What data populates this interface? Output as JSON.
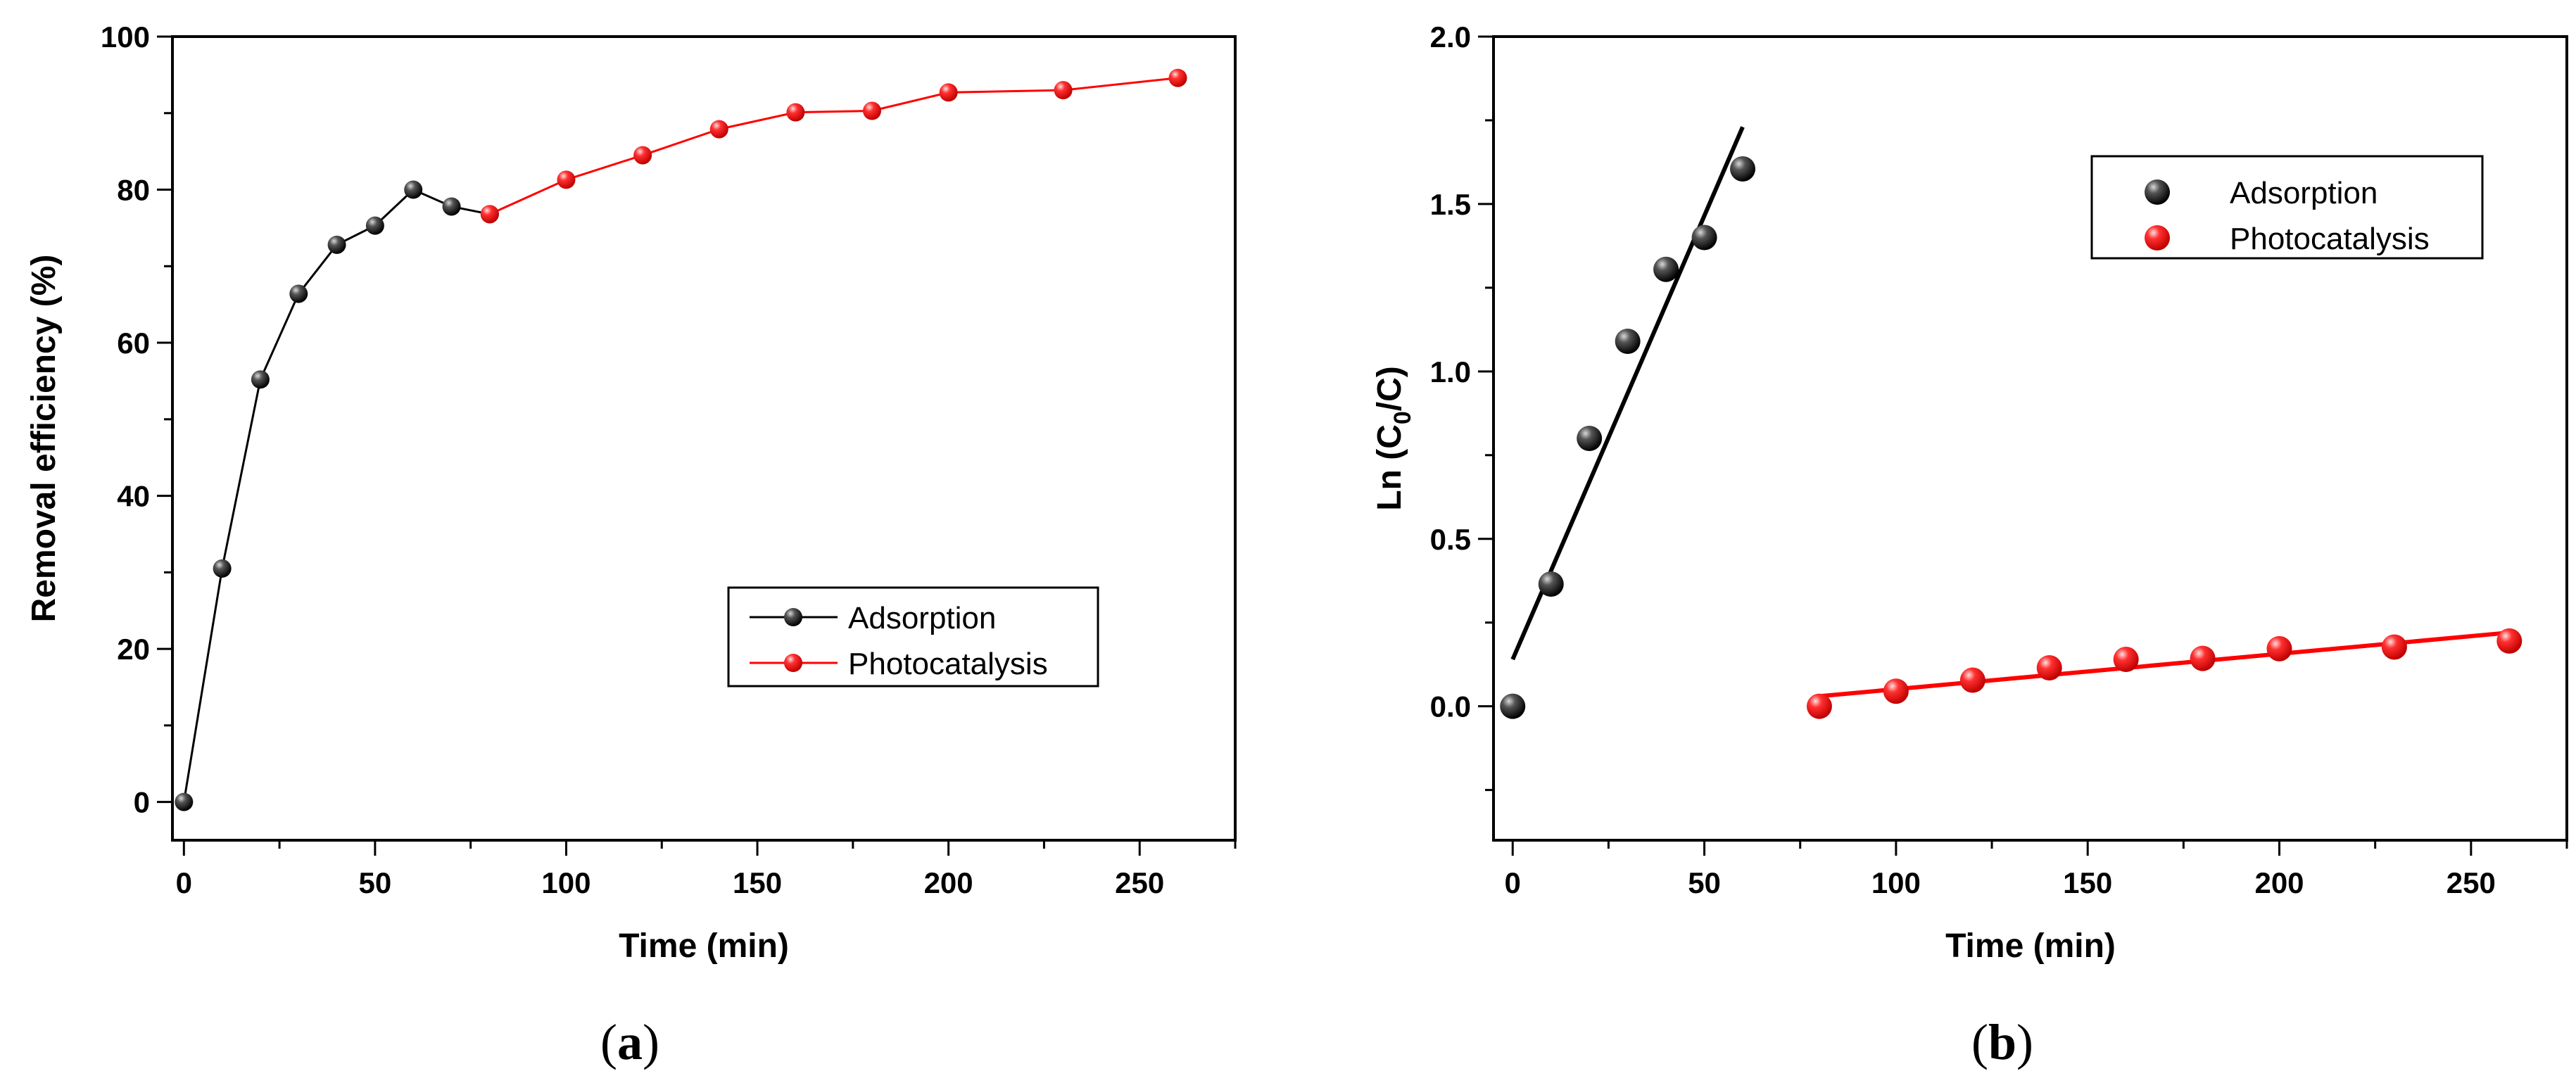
{
  "chart_data": [
    {
      "type": "line",
      "panel": "a",
      "caption_open": "(",
      "caption_letter": "a",
      "caption_close": ")",
      "title": "",
      "xlabel": "Time (min)",
      "ylabel": "Removal efficiency (%)",
      "xlim": [
        -3,
        275
      ],
      "ylim": [
        -5,
        100
      ],
      "xticks": [
        0,
        50,
        100,
        150,
        200,
        250
      ],
      "yticks": [
        0,
        20,
        40,
        60,
        80,
        100
      ],
      "legend_position": "center-right",
      "series": [
        {
          "name": "Adsorption",
          "color": "#000000",
          "line": true,
          "x": [
            0,
            10,
            20,
            30,
            40,
            50,
            60,
            70,
            80
          ],
          "y": [
            0,
            30.5,
            55.2,
            66.4,
            72.8,
            75.3,
            80.0,
            77.8,
            76.8
          ]
        },
        {
          "name": "Photocatalysis",
          "color": "#ff0000",
          "line": true,
          "x": [
            80,
            100,
            120,
            140,
            160,
            180,
            200,
            230,
            260
          ],
          "y": [
            76.8,
            81.3,
            84.5,
            87.9,
            90.1,
            90.3,
            92.7,
            93.0,
            94.6
          ]
        }
      ]
    },
    {
      "type": "scatter",
      "panel": "b",
      "caption_open": "(",
      "caption_letter": "b",
      "caption_close": ")",
      "title": "",
      "xlabel": "Time (min)",
      "ylabel_main": "Ln (C",
      "ylabel_sub": "0",
      "ylabel_tail": "/C)",
      "xlim": [
        -5,
        275
      ],
      "ylim": [
        -0.4,
        2.0
      ],
      "xticks": [
        0,
        50,
        100,
        150,
        200,
        250
      ],
      "yticks": [
        0.0,
        0.5,
        1.0,
        1.5,
        2.0
      ],
      "legend_position": "top-right",
      "series": [
        {
          "name": "Adsorption",
          "color": "#000000",
          "line": false,
          "x": [
            0,
            10,
            20,
            30,
            40,
            50,
            60
          ],
          "y": [
            0.0,
            0.365,
            0.8,
            1.09,
            1.305,
            1.4,
            1.605
          ],
          "fit": {
            "x": [
              0,
              60
            ],
            "y": [
              0.14,
              1.73
            ]
          }
        },
        {
          "name": "Photocatalysis",
          "color": "#ff0000",
          "line": false,
          "x": [
            80,
            100,
            120,
            140,
            160,
            180,
            200,
            230,
            260
          ],
          "y": [
            0.0,
            0.045,
            0.078,
            0.115,
            0.14,
            0.143,
            0.172,
            0.177,
            0.195
          ],
          "fit": {
            "x": [
              80,
              260
            ],
            "y": [
              0.03,
              0.22
            ]
          }
        }
      ]
    }
  ]
}
